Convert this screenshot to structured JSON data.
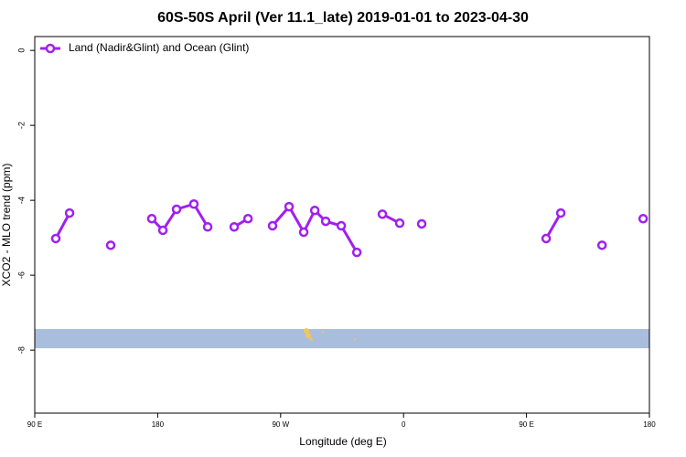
{
  "chart_data": {
    "type": "line",
    "title": "60S-50S April (Ver 11.1_late)   2019-01-01 to 2023-04-30",
    "x_label": "Longitude (deg E)",
    "y_label": "XCO2 - MLO trend (ppm)",
    "x": [
      105.4,
      115.5,
      null,
      145.6,
      null,
      175.7,
      183.8,
      193.8,
      206.5,
      216.6,
      null,
      236.0,
      246.1,
      null,
      264.1,
      276.2,
      286.9,
      295.0,
      303.0,
      314.4,
      325.8,
      null,
      344.5,
      357.2,
      null,
      373.3,
      null,
      464.4,
      475.1,
      null,
      505.3,
      null,
      535.4
    ],
    "series": [
      {
        "name": "Land (Nadir&Glint) and Ocean (Glint)",
        "color": "#a020f0",
        "values": [
          -5.02,
          -4.34,
          null,
          -5.2,
          null,
          -4.49,
          -4.8,
          -4.24,
          -4.1,
          -4.71,
          null,
          -4.71,
          -4.49,
          null,
          -4.68,
          -4.17,
          -4.85,
          -4.27,
          -4.56,
          -4.68,
          -5.39,
          null,
          -4.37,
          -4.61,
          null,
          -4.63,
          null,
          -5.02,
          -4.34,
          null,
          -5.2,
          null,
          -4.49
        ]
      }
    ],
    "xlim": [
      90,
      540
    ],
    "xticks": [
      {
        "value": 90,
        "label": "90 E"
      },
      180,
      {
        "value": 270,
        "label": "90 W"
      },
      {
        "value": 360,
        "label": "0"
      },
      {
        "value": 450,
        "label": "90 E"
      },
      {
        "value": 540,
        "label": "180"
      }
    ],
    "ylim": [
      -9.68,
      0.37
    ],
    "yticks": [
      0,
      -2,
      -4,
      -6,
      -8
    ],
    "legend": "top-left"
  }
}
